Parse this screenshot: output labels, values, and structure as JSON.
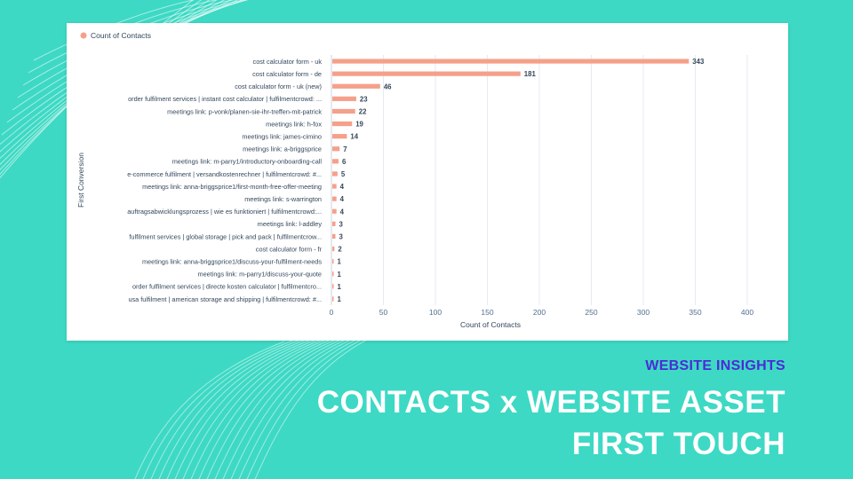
{
  "slide": {
    "kicker": "WEBSITE INSIGHTS",
    "title_line1": "CONTACTS x WEBSITE ASSET",
    "title_line2": "FIRST TOUCH"
  },
  "colors": {
    "background": "#3dd9c4",
    "bar": "#f5a08a",
    "kicker": "#4b2bd6"
  },
  "chart_data": {
    "type": "bar",
    "orientation": "horizontal",
    "legend": {
      "position": "top-left",
      "entries": [
        "Count of Contacts"
      ]
    },
    "xlabel": "Count of Contacts",
    "ylabel": "First Conversion",
    "xlim": [
      0,
      400
    ],
    "xticks": [
      0,
      50,
      100,
      150,
      200,
      250,
      300,
      350,
      400
    ],
    "grid": true,
    "categories": [
      "cost calculator form - uk",
      "cost calculator form - de",
      "cost calculator form - uk (new)",
      "order fulfilment services | instant cost calculator | fulfilmentcrowd: ...",
      "meetings link: p-vonk/planen-sie-ihr-treffen-mit-patrick",
      "meetings link: h-fox",
      "meetings link: james-cimino",
      "meetings link: a-briggsprice",
      "meetings link: m-parry1/introductory-onboarding-call",
      "e-commerce fulfilment | versandkostenrechner | fulfilmentcrowd: #...",
      "meetings link: anna-briggsprice1/first-month-free-offer-meeting",
      "meetings link: s-warrington",
      "auftragsabwicklungsprozess | wie es funktioniert | fulfilmentcrowd:...",
      "meetings link: l-addley",
      "fulfilment services | global storage | pick and pack | fulfilmentcrow...",
      "cost calculator form - fr",
      "meetings link: anna-briggsprice1/discuss-your-fulfilment-needs",
      "meetings link: m-parry1/discuss-your-quote",
      "order fulfilment services | directe kosten calculator | fulfilmentcro...",
      "usa fulfilment | american storage and shipping | fulfilmentcrowd: #..."
    ],
    "series": [
      {
        "name": "Count of Contacts",
        "values": [
          343,
          181,
          46,
          23,
          22,
          19,
          14,
          7,
          6,
          5,
          4,
          4,
          4,
          3,
          3,
          2,
          1,
          1,
          1,
          1
        ]
      }
    ]
  }
}
